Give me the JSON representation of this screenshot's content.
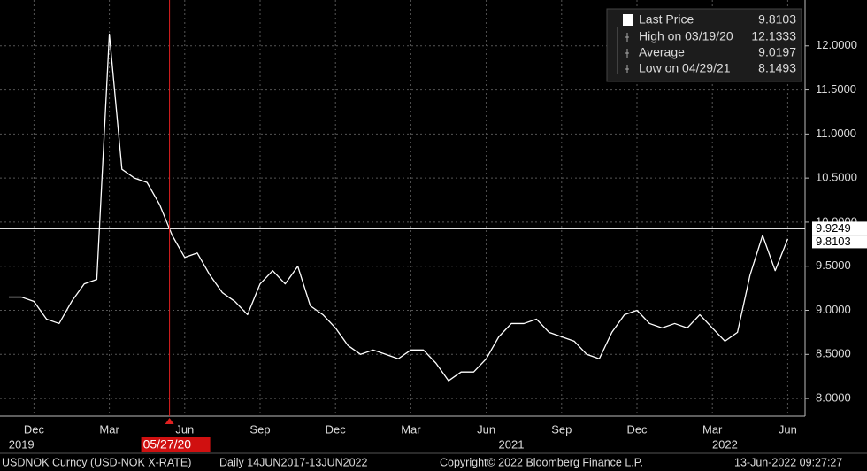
{
  "chart_data": {
    "type": "line",
    "categories": [
      null,
      null,
      "Dec",
      null,
      null,
      null,
      null,
      null,
      "Mar",
      null,
      null,
      null,
      null,
      null,
      "Jun",
      null,
      null,
      null,
      null,
      null,
      "Sep",
      null,
      null,
      null,
      null,
      null,
      "Dec",
      null,
      null,
      null,
      null,
      null,
      "Mar",
      null,
      null,
      null,
      null,
      null,
      "Jun",
      null,
      null,
      null,
      null,
      null,
      "Sep",
      null,
      null,
      null,
      null,
      null,
      "Dec",
      null,
      null,
      null,
      null,
      null,
      "Mar",
      null,
      null,
      null,
      null,
      null,
      "Jun"
    ],
    "years": [
      {
        "label": "2019",
        "at": 1
      },
      {
        "label": "2021",
        "at": 40
      },
      {
        "label": "2022",
        "at": 57
      }
    ],
    "series": [
      {
        "name": "Last Price",
        "color": "#ffffff",
        "values": [
          9.15,
          9.15,
          9.1,
          8.9,
          8.85,
          9.1,
          9.3,
          9.35,
          12.1333,
          10.6,
          10.5,
          10.45,
          10.2,
          9.85,
          9.6,
          9.65,
          9.4,
          9.2,
          9.1,
          8.95,
          9.3,
          9.45,
          9.3,
          9.5,
          9.05,
          8.95,
          8.8,
          8.6,
          8.5,
          8.55,
          8.5,
          8.45,
          8.55,
          8.55,
          8.4,
          8.2,
          8.3,
          8.3,
          8.45,
          8.7,
          8.85,
          8.85,
          8.9,
          8.75,
          8.7,
          8.65,
          8.5,
          8.45,
          8.75,
          8.95,
          9.0,
          8.85,
          8.8,
          8.85,
          8.8,
          8.95,
          8.8,
          8.65,
          8.75,
          9.4,
          9.85,
          9.45,
          9.8103
        ]
      }
    ],
    "stats": [
      {
        "label": "High on 03/19/20",
        "value": 12.1333
      },
      {
        "label": "Average",
        "value": 9.0197
      },
      {
        "label": "Low on 04/29/21",
        "value": 8.1493
      }
    ],
    "hline": 9.9249,
    "marker": {
      "label": "05/27/20",
      "at": 13
    },
    "ylim": [
      7.8,
      12.52
    ],
    "yticks": [
      {
        "value": 8,
        "label": "8.0000"
      },
      {
        "value": 8.5,
        "label": "8.5000"
      },
      {
        "value": 9,
        "label": "9.0000"
      },
      {
        "value": 9.5,
        "label": "9.5000"
      },
      {
        "value": 10,
        "label": "10.0000"
      },
      {
        "value": 10.5,
        "label": "10.5000"
      },
      {
        "value": 11,
        "label": "11.0000"
      },
      {
        "value": 11.5,
        "label": "11.5000"
      },
      {
        "value": 12,
        "label": "12.0000"
      }
    ],
    "grid": true,
    "footer": [
      "USDNOK Curncy (USD-NOK X-RATE)",
      "Daily 14JUN2017-13JUN2022",
      "Copyright© 2022 Bloomberg Finance L.P.",
      "13-Jun-2022 09:27:27"
    ]
  }
}
